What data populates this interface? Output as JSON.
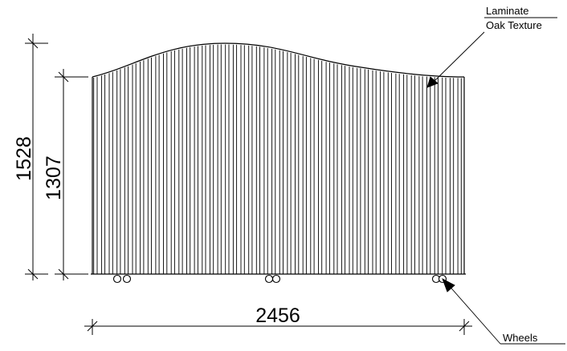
{
  "dimensions": {
    "overall_height": "1528",
    "panel_height": "1307",
    "width": "2456"
  },
  "callouts": {
    "material_line1": "Laminate",
    "material_line2": "Oak Texture",
    "wheels": "Wheels"
  },
  "colors": {
    "line": "#000000",
    "background": "#ffffff"
  }
}
